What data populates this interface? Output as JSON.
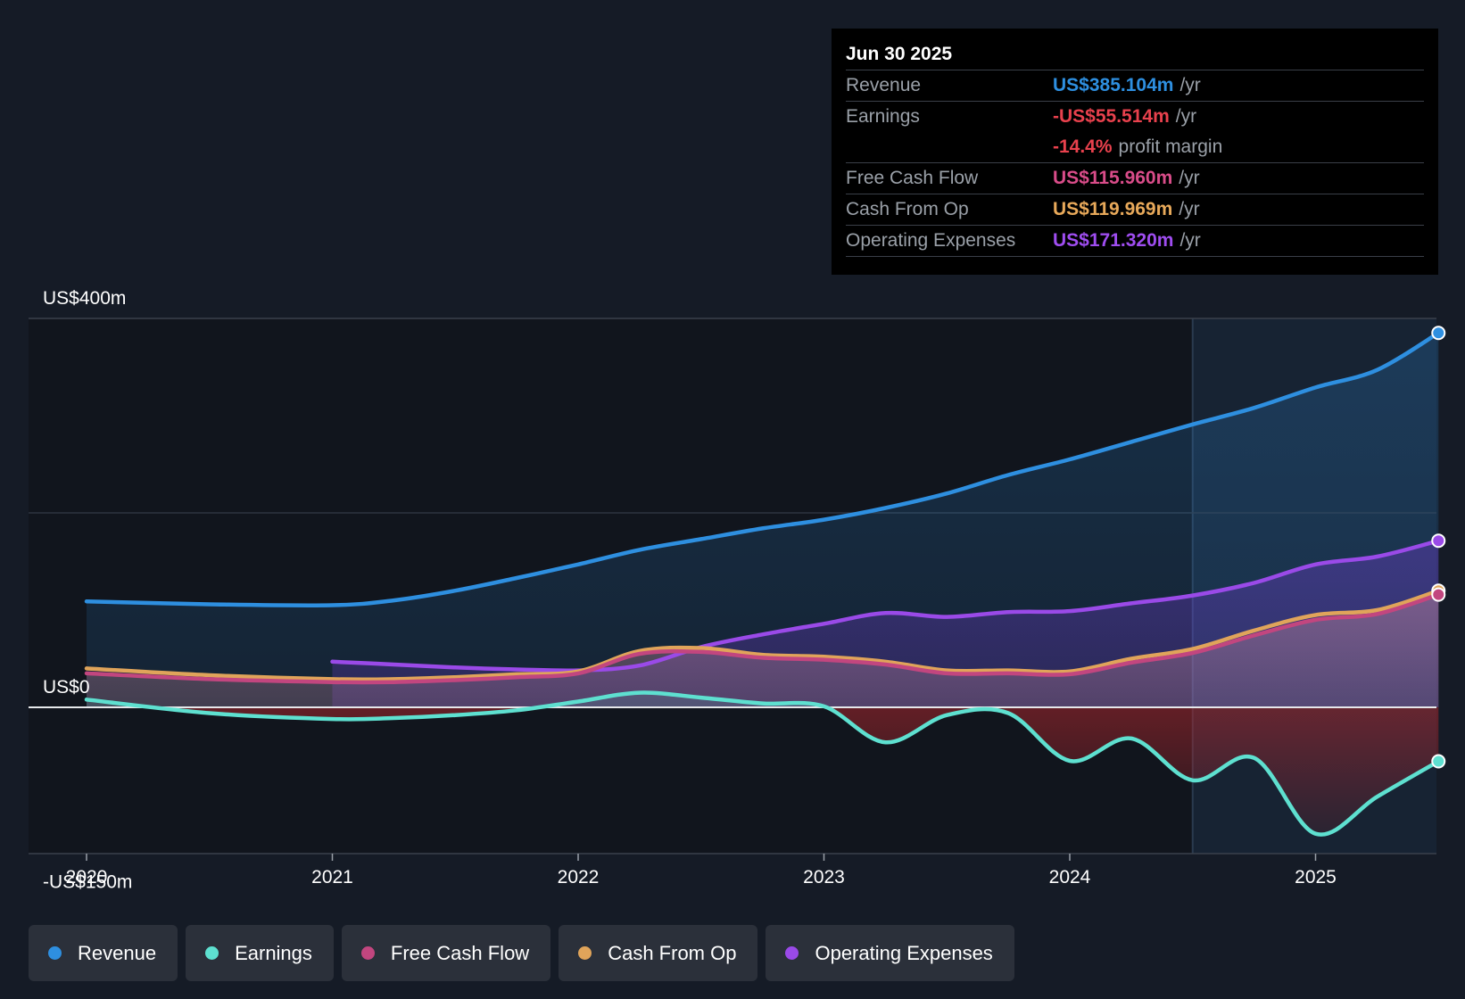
{
  "tooltip": {
    "date": "Jun 30 2025",
    "rows": [
      {
        "label": "Revenue",
        "value": "US$385.104m",
        "unit": "/yr",
        "color": "#2e8fe0"
      },
      {
        "label": "Earnings",
        "value": "-US$55.514m",
        "unit": "/yr",
        "color": "#e8414d"
      },
      {
        "label": "",
        "value": "-14.4%",
        "unit": "profit margin",
        "color": "#e8414d"
      },
      {
        "label": "Free Cash Flow",
        "value": "US$115.960m",
        "unit": "/yr",
        "color": "#d94c89"
      },
      {
        "label": "Cash From Op",
        "value": "US$119.969m",
        "unit": "/yr",
        "color": "#e8a95a"
      },
      {
        "label": "Operating Expenses",
        "value": "US$171.320m",
        "unit": "/yr",
        "color": "#9f4df0"
      }
    ]
  },
  "legend": [
    {
      "label": "Revenue",
      "color": "#2e8fe0"
    },
    {
      "label": "Earnings",
      "color": "#5ee0d0"
    },
    {
      "label": "Free Cash Flow",
      "color": "#c2467f"
    },
    {
      "label": "Cash From Op",
      "color": "#e0a45a"
    },
    {
      "label": "Operating Expenses",
      "color": "#9a4ae8"
    }
  ],
  "chart_data": {
    "type": "line",
    "title": "",
    "xlabel": "",
    "ylabel": "",
    "x_ticks": [
      "2020",
      "2021",
      "2022",
      "2023",
      "2024",
      "2025"
    ],
    "y_labels": [
      {
        "value": 400,
        "text": "US$400m"
      },
      {
        "value": 0,
        "text": "US$0"
      },
      {
        "value": -150,
        "text": "-US$150m"
      }
    ],
    "ylim": [
      -150,
      400
    ],
    "xlim": [
      2019.77,
      2025.5
    ],
    "forecast_start": 2024.5,
    "series": [
      {
        "name": "Revenue",
        "color": "#2e8fe0",
        "fill": true,
        "x": [
          2020,
          2020.5,
          2021,
          2021.25,
          2021.5,
          2021.75,
          2022,
          2022.25,
          2022.5,
          2022.75,
          2023,
          2023.25,
          2023.5,
          2023.75,
          2024,
          2024.25,
          2024.5,
          2024.75,
          2025,
          2025.25,
          2025.5
        ],
        "values": [
          109,
          106,
          105,
          110,
          120,
          133,
          147,
          162,
          173,
          184,
          193,
          205,
          220,
          239,
          255,
          273,
          291,
          308,
          329,
          347,
          385.104
        ]
      },
      {
        "name": "Earnings",
        "color": "#5ee0d0",
        "fill": true,
        "x": [
          2020,
          2020.5,
          2021,
          2021.25,
          2021.5,
          2021.75,
          2022,
          2022.25,
          2022.5,
          2022.75,
          2023,
          2023.25,
          2023.5,
          2023.75,
          2024,
          2024.25,
          2024.5,
          2024.75,
          2025,
          2025.25,
          2025.5
        ],
        "values": [
          8,
          -6,
          -12,
          -11,
          -8,
          -3,
          6,
          15,
          10,
          4,
          1,
          -36,
          -8,
          -6,
          -55,
          -32,
          -75,
          -52,
          -130,
          -92,
          -55.514
        ]
      },
      {
        "name": "Free Cash Flow",
        "color": "#c2467f",
        "fill": true,
        "x": [
          2020,
          2020.5,
          2021,
          2021.25,
          2021.5,
          2021.75,
          2022,
          2022.25,
          2022.5,
          2022.75,
          2023,
          2023.25,
          2023.5,
          2023.75,
          2024,
          2024.25,
          2024.5,
          2024.75,
          2025,
          2025.25,
          2025.5
        ],
        "values": [
          35,
          29,
          26,
          26,
          28,
          31,
          35,
          55,
          57,
          51,
          49,
          44,
          35,
          35,
          34,
          46,
          56,
          74,
          90,
          96,
          115.96
        ]
      },
      {
        "name": "Cash From Op",
        "color": "#e0a45a",
        "fill": false,
        "x": [
          2020,
          2020.5,
          2021,
          2021.25,
          2021.5,
          2021.75,
          2022,
          2022.25,
          2022.5,
          2022.75,
          2023,
          2023.25,
          2023.5,
          2023.75,
          2024,
          2024.25,
          2024.5,
          2024.75,
          2025,
          2025.25,
          2025.5
        ],
        "values": [
          40,
          33,
          29,
          29,
          31,
          34,
          37,
          58,
          61,
          54,
          52,
          47,
          38,
          38,
          37,
          50,
          60,
          79,
          95,
          100,
          119.969
        ]
      },
      {
        "name": "Operating Expenses",
        "color": "#9a4ae8",
        "fill": true,
        "x": [
          2021,
          2021.25,
          2021.5,
          2021.75,
          2022,
          2022.25,
          2022.5,
          2022.75,
          2023,
          2023.25,
          2023.5,
          2023.75,
          2024,
          2024.25,
          2024.5,
          2024.75,
          2025,
          2025.25,
          2025.5
        ],
        "values": [
          47,
          44,
          41,
          39,
          38,
          43,
          62,
          75,
          86,
          97,
          93,
          98,
          99,
          107,
          115,
          128,
          147,
          155,
          171.32
        ]
      }
    ]
  }
}
